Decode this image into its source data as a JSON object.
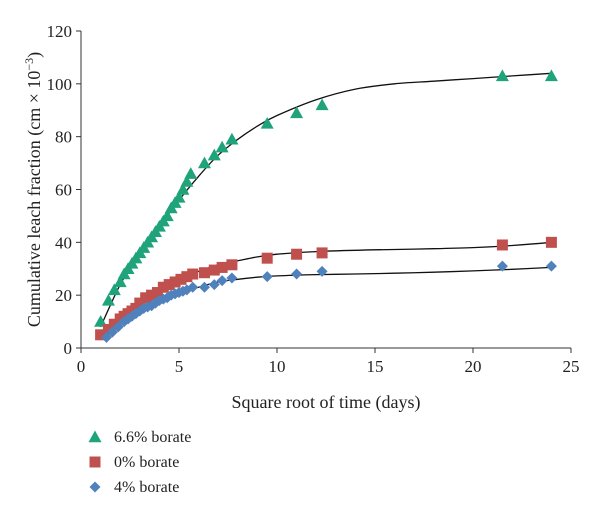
{
  "chart_data": {
    "type": "scatter",
    "xlabel": "Square root of time (days)",
    "ylabel_main": "Cumulative leach fraction (cm × 10",
    "ylabel_sup": "−3",
    "ylabel_close": ")",
    "xlim": [
      0,
      25
    ],
    "ylim": [
      0,
      120
    ],
    "xticks": [
      "0",
      "5",
      "10",
      "15",
      "20",
      "25"
    ],
    "yticks": [
      "0",
      "20",
      "40",
      "60",
      "80",
      "100",
      "120"
    ],
    "grid": false,
    "legend_position": "bottom-left",
    "series": [
      {
        "name": "6.6% borate",
        "marker": "triangle",
        "color": "#1fa37a",
        "x": [
          1.0,
          1.4,
          1.7,
          2.0,
          2.2,
          2.4,
          2.6,
          2.8,
          3.0,
          3.2,
          3.4,
          3.6,
          3.8,
          4.0,
          4.2,
          4.4,
          4.6,
          4.8,
          5.0,
          5.2,
          5.4,
          5.6,
          6.3,
          6.8,
          7.2,
          7.7,
          9.5,
          11.0,
          12.3,
          21.5,
          24.0
        ],
        "y": [
          10,
          18,
          22,
          25,
          28,
          30,
          32,
          34,
          36,
          38,
          40,
          42,
          44,
          46,
          48,
          50,
          53,
          55,
          57,
          60,
          63,
          66,
          70,
          73,
          76,
          79,
          85,
          89,
          92,
          103,
          103
        ]
      },
      {
        "name": "0% borate",
        "marker": "square",
        "color": "#c0504d",
        "x": [
          1.0,
          1.4,
          1.7,
          2.0,
          2.2,
          2.4,
          2.6,
          2.8,
          3.0,
          3.3,
          3.6,
          3.9,
          4.2,
          4.5,
          4.8,
          5.1,
          5.4,
          5.7,
          6.3,
          6.8,
          7.2,
          7.7,
          9.5,
          11.0,
          12.3,
          21.5,
          24.0
        ],
        "y": [
          5,
          7,
          9,
          11,
          12,
          13,
          14,
          15,
          17,
          19,
          20,
          21,
          23,
          24,
          25,
          26,
          27,
          28,
          28.5,
          29.5,
          30.5,
          31.5,
          34,
          35.5,
          36,
          39,
          40
        ]
      },
      {
        "name": "4% borate",
        "marker": "diamond",
        "color": "#4f81bd",
        "x": [
          1.3,
          1.6,
          1.9,
          2.2,
          2.4,
          2.6,
          2.8,
          3.0,
          3.2,
          3.4,
          3.6,
          3.8,
          4.0,
          4.2,
          4.4,
          4.6,
          4.8,
          5.0,
          5.2,
          5.4,
          5.7,
          6.3,
          6.8,
          7.2,
          7.7,
          9.5,
          11.0,
          12.3,
          21.5,
          24.0
        ],
        "y": [
          4,
          6,
          8,
          10,
          11,
          12,
          13,
          14,
          15,
          15.5,
          16,
          17,
          18,
          18.5,
          19,
          20,
          20.5,
          21,
          21.5,
          22,
          23,
          23,
          24,
          25.5,
          26.5,
          27,
          28,
          29,
          31,
          31
        ]
      }
    ],
    "fit_curves": [
      {
        "x": [
          1.0,
          2.0,
          3.0,
          4.0,
          5.0,
          6.0,
          7.0,
          8.0,
          9.0,
          10.0,
          12.0,
          14.0,
          16.0,
          18.0,
          20.0,
          22.0,
          24.0
        ],
        "y": [
          8,
          24,
          36,
          46,
          56,
          65,
          73,
          79,
          84,
          88,
          94,
          98,
          100,
          101,
          102,
          103,
          104
        ]
      },
      {
        "x": [
          1.0,
          2.0,
          3.0,
          4.0,
          5.0,
          6.0,
          7.0,
          8.0,
          9.0,
          10.0,
          12.0,
          14.0,
          16.0,
          18.0,
          20.0,
          22.0,
          24.0
        ],
        "y": [
          5,
          11,
          17,
          22,
          26,
          29,
          31.5,
          33,
          34.5,
          35.5,
          36.5,
          37,
          37.3,
          37.6,
          38,
          38.8,
          40
        ]
      },
      {
        "x": [
          1.3,
          2.0,
          3.0,
          4.0,
          5.0,
          6.0,
          7.0,
          8.0,
          9.0,
          10.0,
          12.0,
          14.0,
          16.0,
          18.0,
          20.0,
          22.0,
          24.0
        ],
        "y": [
          4,
          9,
          14,
          18,
          21,
          23,
          25,
          26,
          26.8,
          27.3,
          27.8,
          28,
          28.3,
          28.7,
          29.2,
          29.8,
          30.5
        ]
      }
    ]
  }
}
